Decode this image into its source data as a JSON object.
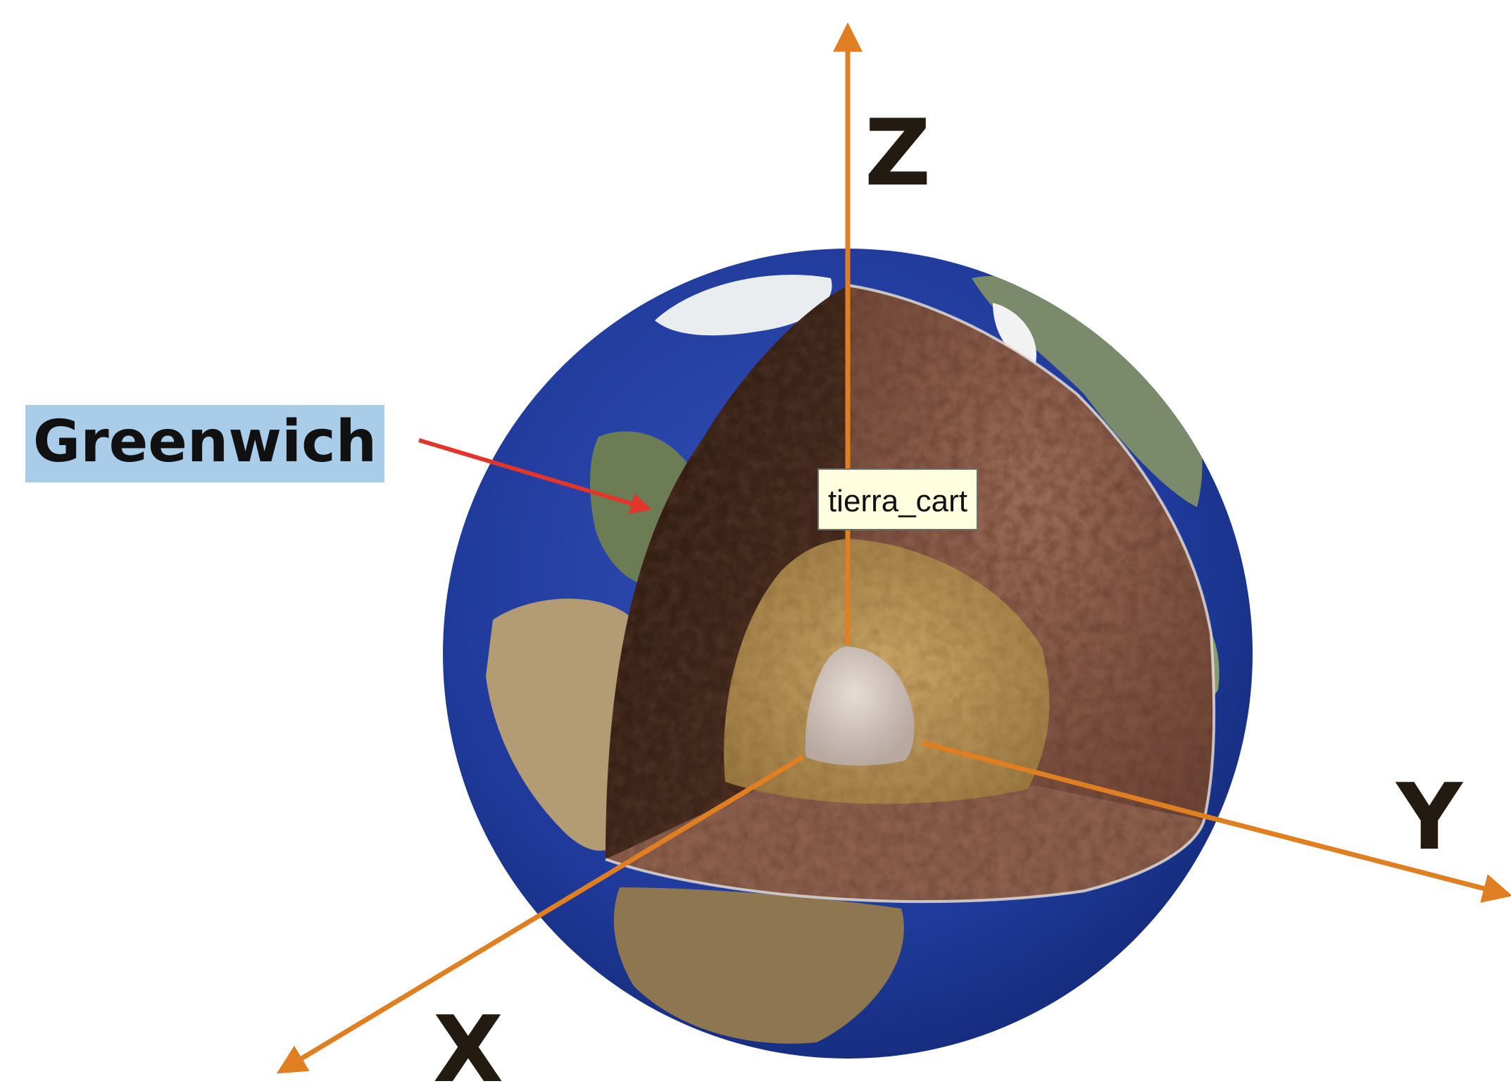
{
  "labels": {
    "z_axis": "Z",
    "y_axis": "Y",
    "x_axis": "X",
    "origin": "tierra_cart",
    "meridian": "Greenwich"
  },
  "colors": {
    "axis": "#E07E22",
    "pointer_arrow": "#E2352B",
    "ocean": "#1F3A9A",
    "label_highlight": "#A9CCE8",
    "origin_label_bg": "#FFFFE0",
    "crust": "#8A5A48",
    "mantle_dark": "#3A2418",
    "outer_core": "#B8924E",
    "inner_core": "#D8CBC4"
  }
}
